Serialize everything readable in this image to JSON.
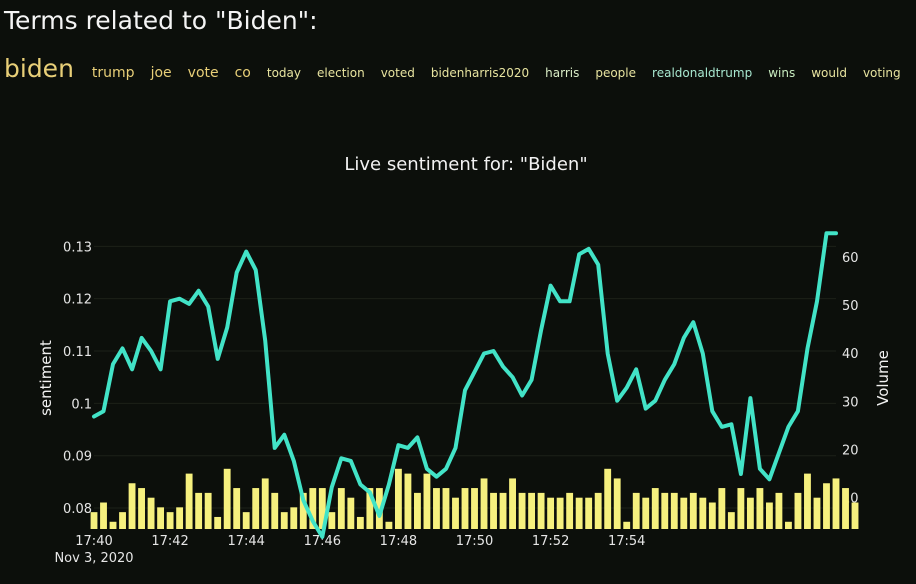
{
  "heading": "Terms related to \"Biden\":",
  "terms": [
    {
      "text": "biden",
      "size": 25,
      "color": "#e8cf78"
    },
    {
      "text": "trump",
      "size": 14,
      "color": "#e8cf78"
    },
    {
      "text": "joe",
      "size": 14,
      "color": "#e8cf78"
    },
    {
      "text": "vote",
      "size": 14,
      "color": "#e8cf78"
    },
    {
      "text": "co",
      "size": 14,
      "color": "#e8cf78"
    },
    {
      "text": "today",
      "size": 12,
      "color": "#e8e4a0"
    },
    {
      "text": "election",
      "size": 12,
      "color": "#e8e4a0"
    },
    {
      "text": "voted",
      "size": 12,
      "color": "#e8e4a0"
    },
    {
      "text": "bidenharris2020",
      "size": 12,
      "color": "#e8e4a0"
    },
    {
      "text": "harris",
      "size": 12,
      "color": "#d9ecc6"
    },
    {
      "text": "people",
      "size": 12,
      "color": "#e8e4a0"
    },
    {
      "text": "realdonaldtrump",
      "size": 12,
      "color": "#a8e8d0"
    },
    {
      "text": "wins",
      "size": 12,
      "color": "#c8ecc0"
    },
    {
      "text": "would",
      "size": 12,
      "color": "#e8e4a0"
    },
    {
      "text": "voting",
      "size": 12,
      "color": "#e8e4a0"
    }
  ],
  "chart_data": {
    "type": "line",
    "title": "Live sentiment for: \"Biden\"",
    "ylabel": "sentiment",
    "y2label": "Volume",
    "xlabel": "",
    "date_label": "Nov 3, 2020",
    "x_start": "17:40",
    "x_step_minutes": 0.25,
    "x_ticks": [
      "17:40",
      "17:42",
      "17:44",
      "17:46",
      "17:48",
      "17:50",
      "17:52",
      "17:54"
    ],
    "y_ticks": [
      0.08,
      0.09,
      0.1,
      0.11,
      0.12,
      0.13
    ],
    "y_tick_labels": [
      "0.08",
      "0.09",
      "0.1",
      "0.11",
      "0.12",
      "0.13"
    ],
    "y2_ticks": [
      10,
      20,
      30,
      40,
      50,
      60
    ],
    "ylim": [
      0.076,
      0.1335
    ],
    "y2lim": [
      3.5,
      66
    ],
    "grid": true,
    "series": [
      {
        "type": "line",
        "axis": "left",
        "color": "#42e3c7",
        "values": [
          0.0975,
          0.0985,
          0.1075,
          0.1105,
          0.1065,
          0.1125,
          0.11,
          0.1065,
          0.1195,
          0.12,
          0.119,
          0.1215,
          0.1185,
          0.1085,
          0.1145,
          0.125,
          0.129,
          0.1255,
          0.112,
          0.0915,
          0.094,
          0.089,
          0.0815,
          0.0775,
          0.0745,
          0.084,
          0.0895,
          0.089,
          0.0845,
          0.083,
          0.0785,
          0.0845,
          0.092,
          0.0915,
          0.0935,
          0.0875,
          0.086,
          0.0875,
          0.0915,
          0.1025,
          0.106,
          0.1095,
          0.11,
          0.107,
          0.105,
          0.1015,
          0.1045,
          0.114,
          0.1225,
          0.1195,
          0.1195,
          0.1285,
          0.1295,
          0.1265,
          0.1095,
          0.1005,
          0.103,
          0.1065,
          0.099,
          0.1005,
          0.1045,
          0.1075,
          0.1125,
          0.1155,
          0.1095,
          0.0985,
          0.0955,
          0.096,
          0.0865,
          0.101,
          0.0875,
          0.0855,
          0.0905,
          0.0955,
          0.0985,
          0.1105,
          0.1195,
          0.1325,
          0.1325
        ]
      },
      {
        "type": "bar",
        "axis": "right",
        "color": "#f6f07e",
        "values": [
          7,
          9,
          5,
          7,
          13,
          12,
          10,
          8,
          7,
          8,
          15,
          11,
          11,
          6,
          16,
          12,
          7,
          12,
          14,
          11,
          7,
          8,
          11,
          12,
          12,
          7,
          12,
          10,
          6,
          12,
          12,
          5,
          16,
          15,
          11,
          15,
          12,
          12,
          10,
          12,
          12,
          14,
          11,
          11,
          14,
          11,
          11,
          11,
          10,
          10,
          11,
          10,
          10,
          11,
          16,
          14,
          5,
          11,
          10,
          12,
          11,
          11,
          10,
          11,
          10,
          9,
          12,
          7,
          12,
          10,
          12,
          9,
          11,
          5,
          11,
          15,
          10,
          13,
          14,
          12,
          9
        ]
      }
    ]
  }
}
